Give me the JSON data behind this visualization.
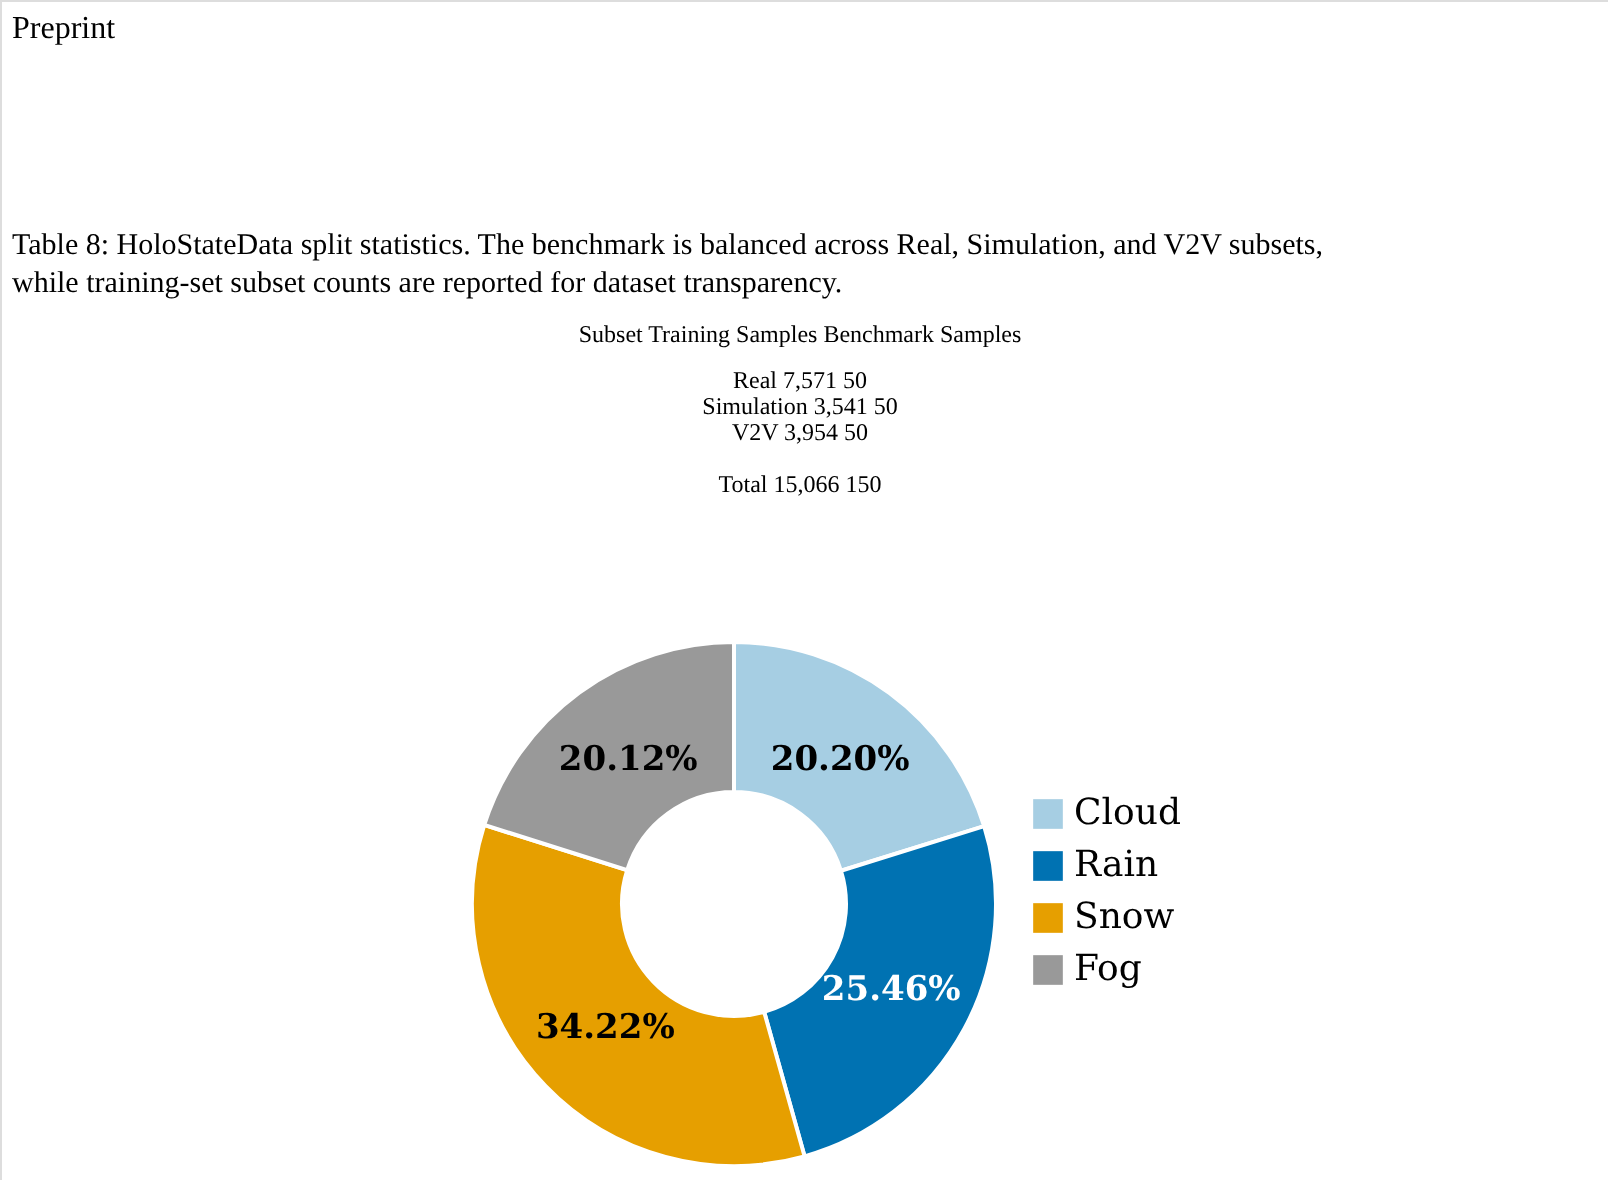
{
  "chart_data": {
    "type": "donut",
    "categories": [
      "Cloud",
      "Rain",
      "Snow",
      "Fog"
    ],
    "values": [
      20.2,
      25.46,
      34.22,
      20.12
    ],
    "colors": [
      "#a6cee3",
      "#0072b2",
      "#e69f00",
      "#999999"
    ],
    "value_labels": [
      "20.20%",
      "25.46%",
      "34.22%",
      "20.12%"
    ],
    "legend": "right",
    "annotations": [
      "Preprint",
      "Table 8: HoloStateData split statistics. The benchmark is balanced across Real, Simulation, and V2V subsets,",
      "while training-set subset counts are reported for dataset transparency.",
      "Subset        Training Samples        Benchmark Samples",
      "Real              7,571                    50",
      "Simulation        3,541                    50",
      "V2V               3,954                    50",
      "Total             15,066                   150"
    ]
  }
}
